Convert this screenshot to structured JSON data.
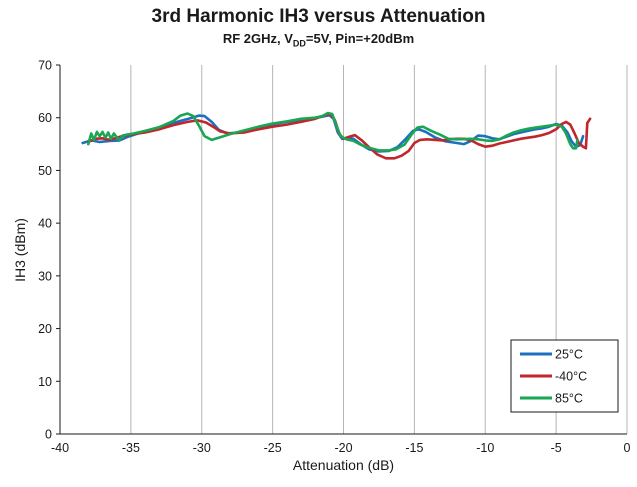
{
  "chart_data": {
    "type": "line",
    "title": "3rd Harmonic IH3 versus Attenuation",
    "subtitle": {
      "prefix": "RF 2GHz, V",
      "sub": "DD",
      "suffix": "=5V, Pin=+20dBm"
    },
    "xlabel": "Attenuation (dB)",
    "ylabel": "IH3 (dBm)",
    "xlim": [
      -40,
      0
    ],
    "ylim": [
      0,
      70
    ],
    "xticks": [
      -40,
      -35,
      -30,
      -25,
      -20,
      -15,
      -10,
      -5,
      0
    ],
    "yticks": [
      0,
      10,
      20,
      30,
      40,
      50,
      60,
      70
    ],
    "grid": "vertical",
    "legend_position": "bottom-right",
    "series": [
      {
        "name": "25°C",
        "color": "#1f6fc1",
        "points": [
          [
            -38.4,
            55.2
          ],
          [
            -37.8,
            55.7
          ],
          [
            -37.2,
            55.4
          ],
          [
            -36.5,
            55.6
          ],
          [
            -35.8,
            55.7
          ],
          [
            -35.2,
            56.4
          ],
          [
            -34.5,
            57.0
          ],
          [
            -33.5,
            57.8
          ],
          [
            -32.5,
            58.6
          ],
          [
            -31.5,
            59.4
          ],
          [
            -30.8,
            59.9
          ],
          [
            -30.2,
            60.4
          ],
          [
            -29.8,
            60.3
          ],
          [
            -29.3,
            59.2
          ],
          [
            -28.8,
            57.7
          ],
          [
            -28.2,
            57.0
          ],
          [
            -27.5,
            57.2
          ],
          [
            -26.5,
            57.8
          ],
          [
            -25.5,
            58.4
          ],
          [
            -24.5,
            59.0
          ],
          [
            -23.5,
            59.4
          ],
          [
            -22.5,
            59.8
          ],
          [
            -21.5,
            60.2
          ],
          [
            -21.0,
            60.5
          ],
          [
            -20.7,
            59.8
          ],
          [
            -20.4,
            57.2
          ],
          [
            -20.1,
            56.0
          ],
          [
            -19.7,
            56.2
          ],
          [
            -19.3,
            56.0
          ],
          [
            -18.8,
            55.0
          ],
          [
            -18.2,
            54.0
          ],
          [
            -17.5,
            53.6
          ],
          [
            -16.8,
            53.7
          ],
          [
            -16.2,
            54.4
          ],
          [
            -15.6,
            56.0
          ],
          [
            -15.1,
            57.5
          ],
          [
            -14.7,
            57.8
          ],
          [
            -14.2,
            57.3
          ],
          [
            -13.5,
            56.2
          ],
          [
            -12.8,
            55.5
          ],
          [
            -12.0,
            55.2
          ],
          [
            -11.5,
            55.0
          ],
          [
            -11.0,
            55.6
          ],
          [
            -10.5,
            56.6
          ],
          [
            -10.0,
            56.5
          ],
          [
            -9.5,
            56.1
          ],
          [
            -9.0,
            55.9
          ],
          [
            -8.5,
            56.4
          ],
          [
            -8.0,
            56.9
          ],
          [
            -7.5,
            57.2
          ],
          [
            -7.0,
            57.5
          ],
          [
            -6.5,
            57.8
          ],
          [
            -6.0,
            58.0
          ],
          [
            -5.5,
            58.3
          ],
          [
            -5.0,
            58.8
          ],
          [
            -4.6,
            58.5
          ],
          [
            -4.2,
            57.2
          ],
          [
            -3.9,
            55.5
          ],
          [
            -3.6,
            54.5
          ],
          [
            -3.3,
            54.8
          ],
          [
            -3.1,
            56.5
          ]
        ]
      },
      {
        "name": "-40°C",
        "color": "#c0262c",
        "points": [
          [
            -38.0,
            55.4
          ],
          [
            -37.5,
            56.0
          ],
          [
            -37.0,
            56.1
          ],
          [
            -36.5,
            55.8
          ],
          [
            -36.0,
            56.2
          ],
          [
            -35.5,
            56.6
          ],
          [
            -35.0,
            56.8
          ],
          [
            -34.5,
            57.0
          ],
          [
            -34.0,
            57.2
          ],
          [
            -33.0,
            57.8
          ],
          [
            -32.0,
            58.6
          ],
          [
            -31.0,
            59.2
          ],
          [
            -30.3,
            59.5
          ],
          [
            -29.7,
            59.1
          ],
          [
            -29.2,
            58.3
          ],
          [
            -28.7,
            57.4
          ],
          [
            -28.0,
            57.0
          ],
          [
            -27.0,
            57.2
          ],
          [
            -26.0,
            57.8
          ],
          [
            -25.0,
            58.3
          ],
          [
            -24.0,
            58.7
          ],
          [
            -23.0,
            59.2
          ],
          [
            -22.0,
            59.8
          ],
          [
            -21.3,
            60.5
          ],
          [
            -20.9,
            60.7
          ],
          [
            -20.6,
            59.5
          ],
          [
            -20.3,
            57.0
          ],
          [
            -20.0,
            56.0
          ],
          [
            -19.6,
            56.4
          ],
          [
            -19.2,
            56.7
          ],
          [
            -18.7,
            55.7
          ],
          [
            -18.2,
            54.4
          ],
          [
            -17.6,
            53.0
          ],
          [
            -17.0,
            52.3
          ],
          [
            -16.4,
            52.3
          ],
          [
            -15.9,
            52.8
          ],
          [
            -15.4,
            53.7
          ],
          [
            -15.0,
            55.2
          ],
          [
            -14.6,
            55.8
          ],
          [
            -14.1,
            55.9
          ],
          [
            -13.5,
            55.8
          ],
          [
            -13.0,
            55.7
          ],
          [
            -12.5,
            55.9
          ],
          [
            -12.0,
            56.0
          ],
          [
            -11.5,
            56.0
          ],
          [
            -11.0,
            55.7
          ],
          [
            -10.5,
            55.0
          ],
          [
            -10.0,
            54.5
          ],
          [
            -9.5,
            54.7
          ],
          [
            -9.0,
            55.1
          ],
          [
            -8.5,
            55.4
          ],
          [
            -8.0,
            55.7
          ],
          [
            -7.5,
            56.0
          ],
          [
            -7.0,
            56.2
          ],
          [
            -6.5,
            56.4
          ],
          [
            -6.0,
            56.7
          ],
          [
            -5.5,
            57.1
          ],
          [
            -5.0,
            57.8
          ],
          [
            -4.6,
            58.8
          ],
          [
            -4.3,
            59.2
          ],
          [
            -4.0,
            58.7
          ],
          [
            -3.7,
            57.0
          ],
          [
            -3.4,
            55.2
          ],
          [
            -3.1,
            54.5
          ],
          [
            -2.9,
            54.2
          ],
          [
            -2.8,
            59.0
          ],
          [
            -2.6,
            59.8
          ]
        ]
      },
      {
        "name": "85°C",
        "color": "#1aa652",
        "points": [
          [
            -38.0,
            55.0
          ],
          [
            -37.8,
            57.0
          ],
          [
            -37.6,
            55.8
          ],
          [
            -37.4,
            57.3
          ],
          [
            -37.2,
            56.5
          ],
          [
            -37.0,
            57.3
          ],
          [
            -36.8,
            56.2
          ],
          [
            -36.6,
            57.2
          ],
          [
            -36.4,
            56.0
          ],
          [
            -36.2,
            57.0
          ],
          [
            -36.0,
            56.3
          ],
          [
            -35.8,
            55.8
          ],
          [
            -35.6,
            56.6
          ],
          [
            -35.3,
            56.8
          ],
          [
            -34.8,
            57.0
          ],
          [
            -34.0,
            57.5
          ],
          [
            -33.0,
            58.2
          ],
          [
            -32.0,
            59.4
          ],
          [
            -31.5,
            60.4
          ],
          [
            -31.0,
            60.8
          ],
          [
            -30.6,
            60.3
          ],
          [
            -30.2,
            58.5
          ],
          [
            -29.8,
            56.5
          ],
          [
            -29.3,
            55.8
          ],
          [
            -28.7,
            56.3
          ],
          [
            -28.0,
            56.9
          ],
          [
            -27.0,
            57.6
          ],
          [
            -26.0,
            58.3
          ],
          [
            -25.0,
            58.9
          ],
          [
            -24.0,
            59.3
          ],
          [
            -23.0,
            59.8
          ],
          [
            -22.0,
            60.0
          ],
          [
            -21.5,
            60.3
          ],
          [
            -21.1,
            60.9
          ],
          [
            -20.8,
            60.7
          ],
          [
            -20.5,
            58.5
          ],
          [
            -20.2,
            56.5
          ],
          [
            -19.8,
            55.9
          ],
          [
            -19.3,
            55.6
          ],
          [
            -18.8,
            54.9
          ],
          [
            -18.2,
            54.3
          ],
          [
            -17.5,
            53.8
          ],
          [
            -16.8,
            53.8
          ],
          [
            -16.3,
            54.0
          ],
          [
            -15.7,
            54.9
          ],
          [
            -15.2,
            56.8
          ],
          [
            -14.8,
            58.1
          ],
          [
            -14.4,
            58.3
          ],
          [
            -13.8,
            57.5
          ],
          [
            -13.2,
            56.8
          ],
          [
            -12.6,
            56.0
          ],
          [
            -12.0,
            55.9
          ],
          [
            -11.0,
            56.0
          ],
          [
            -10.5,
            55.9
          ],
          [
            -10.0,
            55.7
          ],
          [
            -9.5,
            55.6
          ],
          [
            -9.0,
            55.9
          ],
          [
            -8.5,
            56.6
          ],
          [
            -8.0,
            57.2
          ],
          [
            -7.5,
            57.6
          ],
          [
            -7.0,
            57.9
          ],
          [
            -6.5,
            58.1
          ],
          [
            -6.0,
            58.3
          ],
          [
            -5.5,
            58.5
          ],
          [
            -5.0,
            58.7
          ],
          [
            -4.6,
            58.3
          ],
          [
            -4.3,
            57.0
          ],
          [
            -4.0,
            55.0
          ],
          [
            -3.8,
            54.2
          ],
          [
            -3.6,
            54.2
          ],
          [
            -3.5,
            55.8
          ]
        ]
      }
    ]
  }
}
